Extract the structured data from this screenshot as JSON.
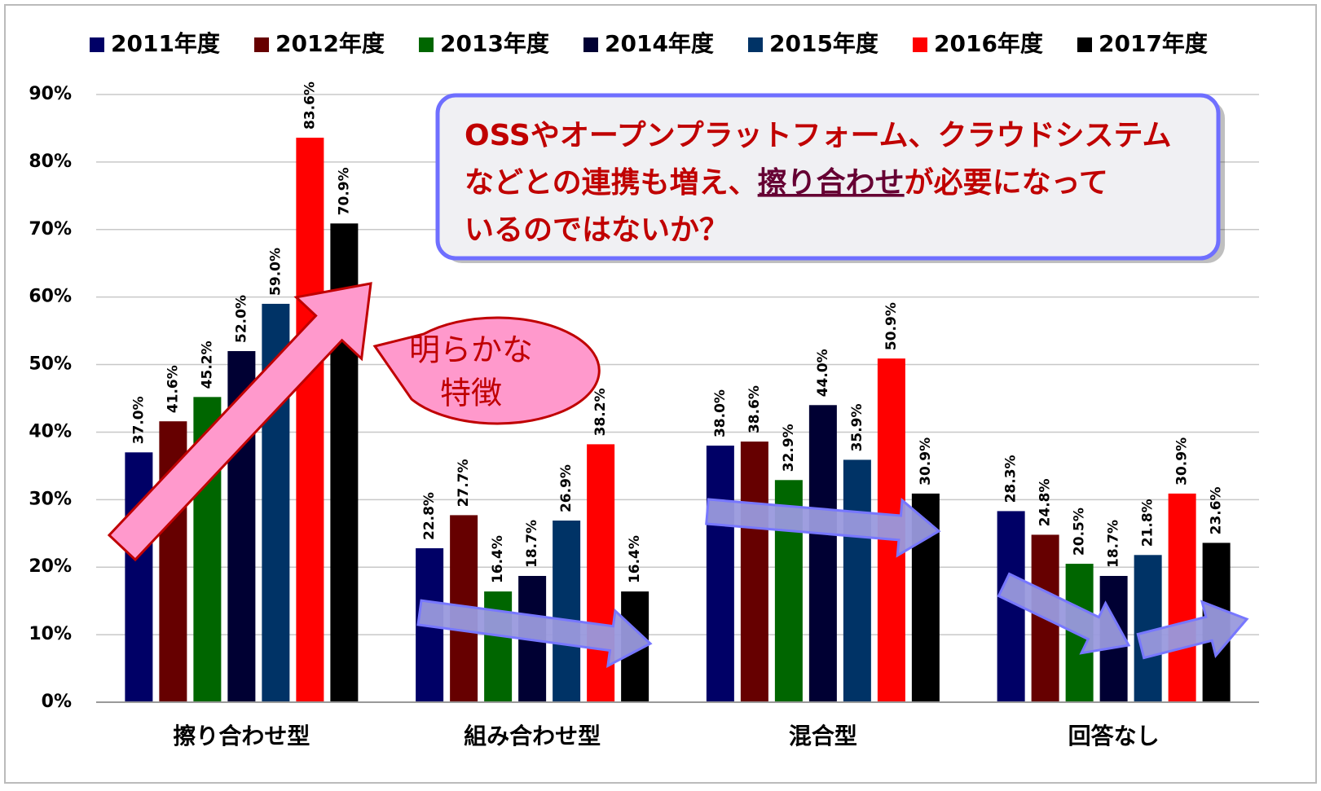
{
  "chart_data": {
    "type": "bar",
    "categories": [
      "擦り合わせ型",
      "組み合わせ型",
      "混合型",
      "回答なし"
    ],
    "series": [
      {
        "name": "2011年度",
        "color": "#000066",
        "values": [
          37.0,
          22.8,
          38.0,
          28.3
        ],
        "value_labels": [
          "37.0%",
          "22.8%",
          "38.0%",
          "28.3%"
        ]
      },
      {
        "name": "2012年度",
        "color": "#660000",
        "values": [
          41.6,
          27.7,
          38.6,
          24.8
        ],
        "value_labels": [
          "41.6%",
          "27.7%",
          "38.6%",
          "24.8%"
        ]
      },
      {
        "name": "2013年度",
        "color": "#006600",
        "values": [
          45.2,
          16.4,
          32.9,
          20.5
        ],
        "value_labels": [
          "45.2%",
          "16.4%",
          "32.9%",
          "20.5%"
        ]
      },
      {
        "name": "2014年度",
        "color": "#000033",
        "values": [
          52.0,
          18.7,
          44.0,
          18.7
        ],
        "value_labels": [
          "52.0%",
          "18.7%",
          "44.0%",
          "18.7%"
        ]
      },
      {
        "name": "2015年度",
        "color": "#003366",
        "values": [
          59.0,
          26.9,
          35.9,
          21.8
        ],
        "value_labels": [
          "59.0%",
          "26.9%",
          "35.9%",
          "21.8%"
        ]
      },
      {
        "name": "2016年度",
        "color": "#ff0000",
        "values": [
          83.6,
          38.2,
          50.9,
          30.9
        ],
        "value_labels": [
          "83.6%",
          "38.2%",
          "50.9%",
          "30.9%"
        ]
      },
      {
        "name": "2017年度",
        "color": "#000000",
        "values": [
          70.9,
          16.4,
          30.9,
          23.6
        ],
        "value_labels": [
          "70.9%",
          "16.4%",
          "30.9%",
          "23.6%"
        ]
      }
    ],
    "ylim": [
      0,
      90
    ],
    "yticks": [
      {
        "value": 0,
        "label": "0%"
      },
      {
        "value": 10,
        "label": "10%"
      },
      {
        "value": 20,
        "label": "20%"
      },
      {
        "value": 30,
        "label": "30%"
      },
      {
        "value": 40,
        "label": "40%"
      },
      {
        "value": 50,
        "label": "50%"
      },
      {
        "value": 60,
        "label": "60%"
      },
      {
        "value": 70,
        "label": "70%"
      },
      {
        "value": 80,
        "label": "80%"
      },
      {
        "value": 90,
        "label": "90%"
      }
    ],
    "grid": true,
    "legend": "top",
    "callout": {
      "lines": [
        "OSSやオープンプラットフォーム、クラウドシステム",
        "などとの連携も増え、",
        "擦り合わせ",
        "が必要になって",
        "いるのではないか？"
      ]
    },
    "bubble": {
      "lines": [
        "明らかな",
        "特徴"
      ]
    }
  }
}
